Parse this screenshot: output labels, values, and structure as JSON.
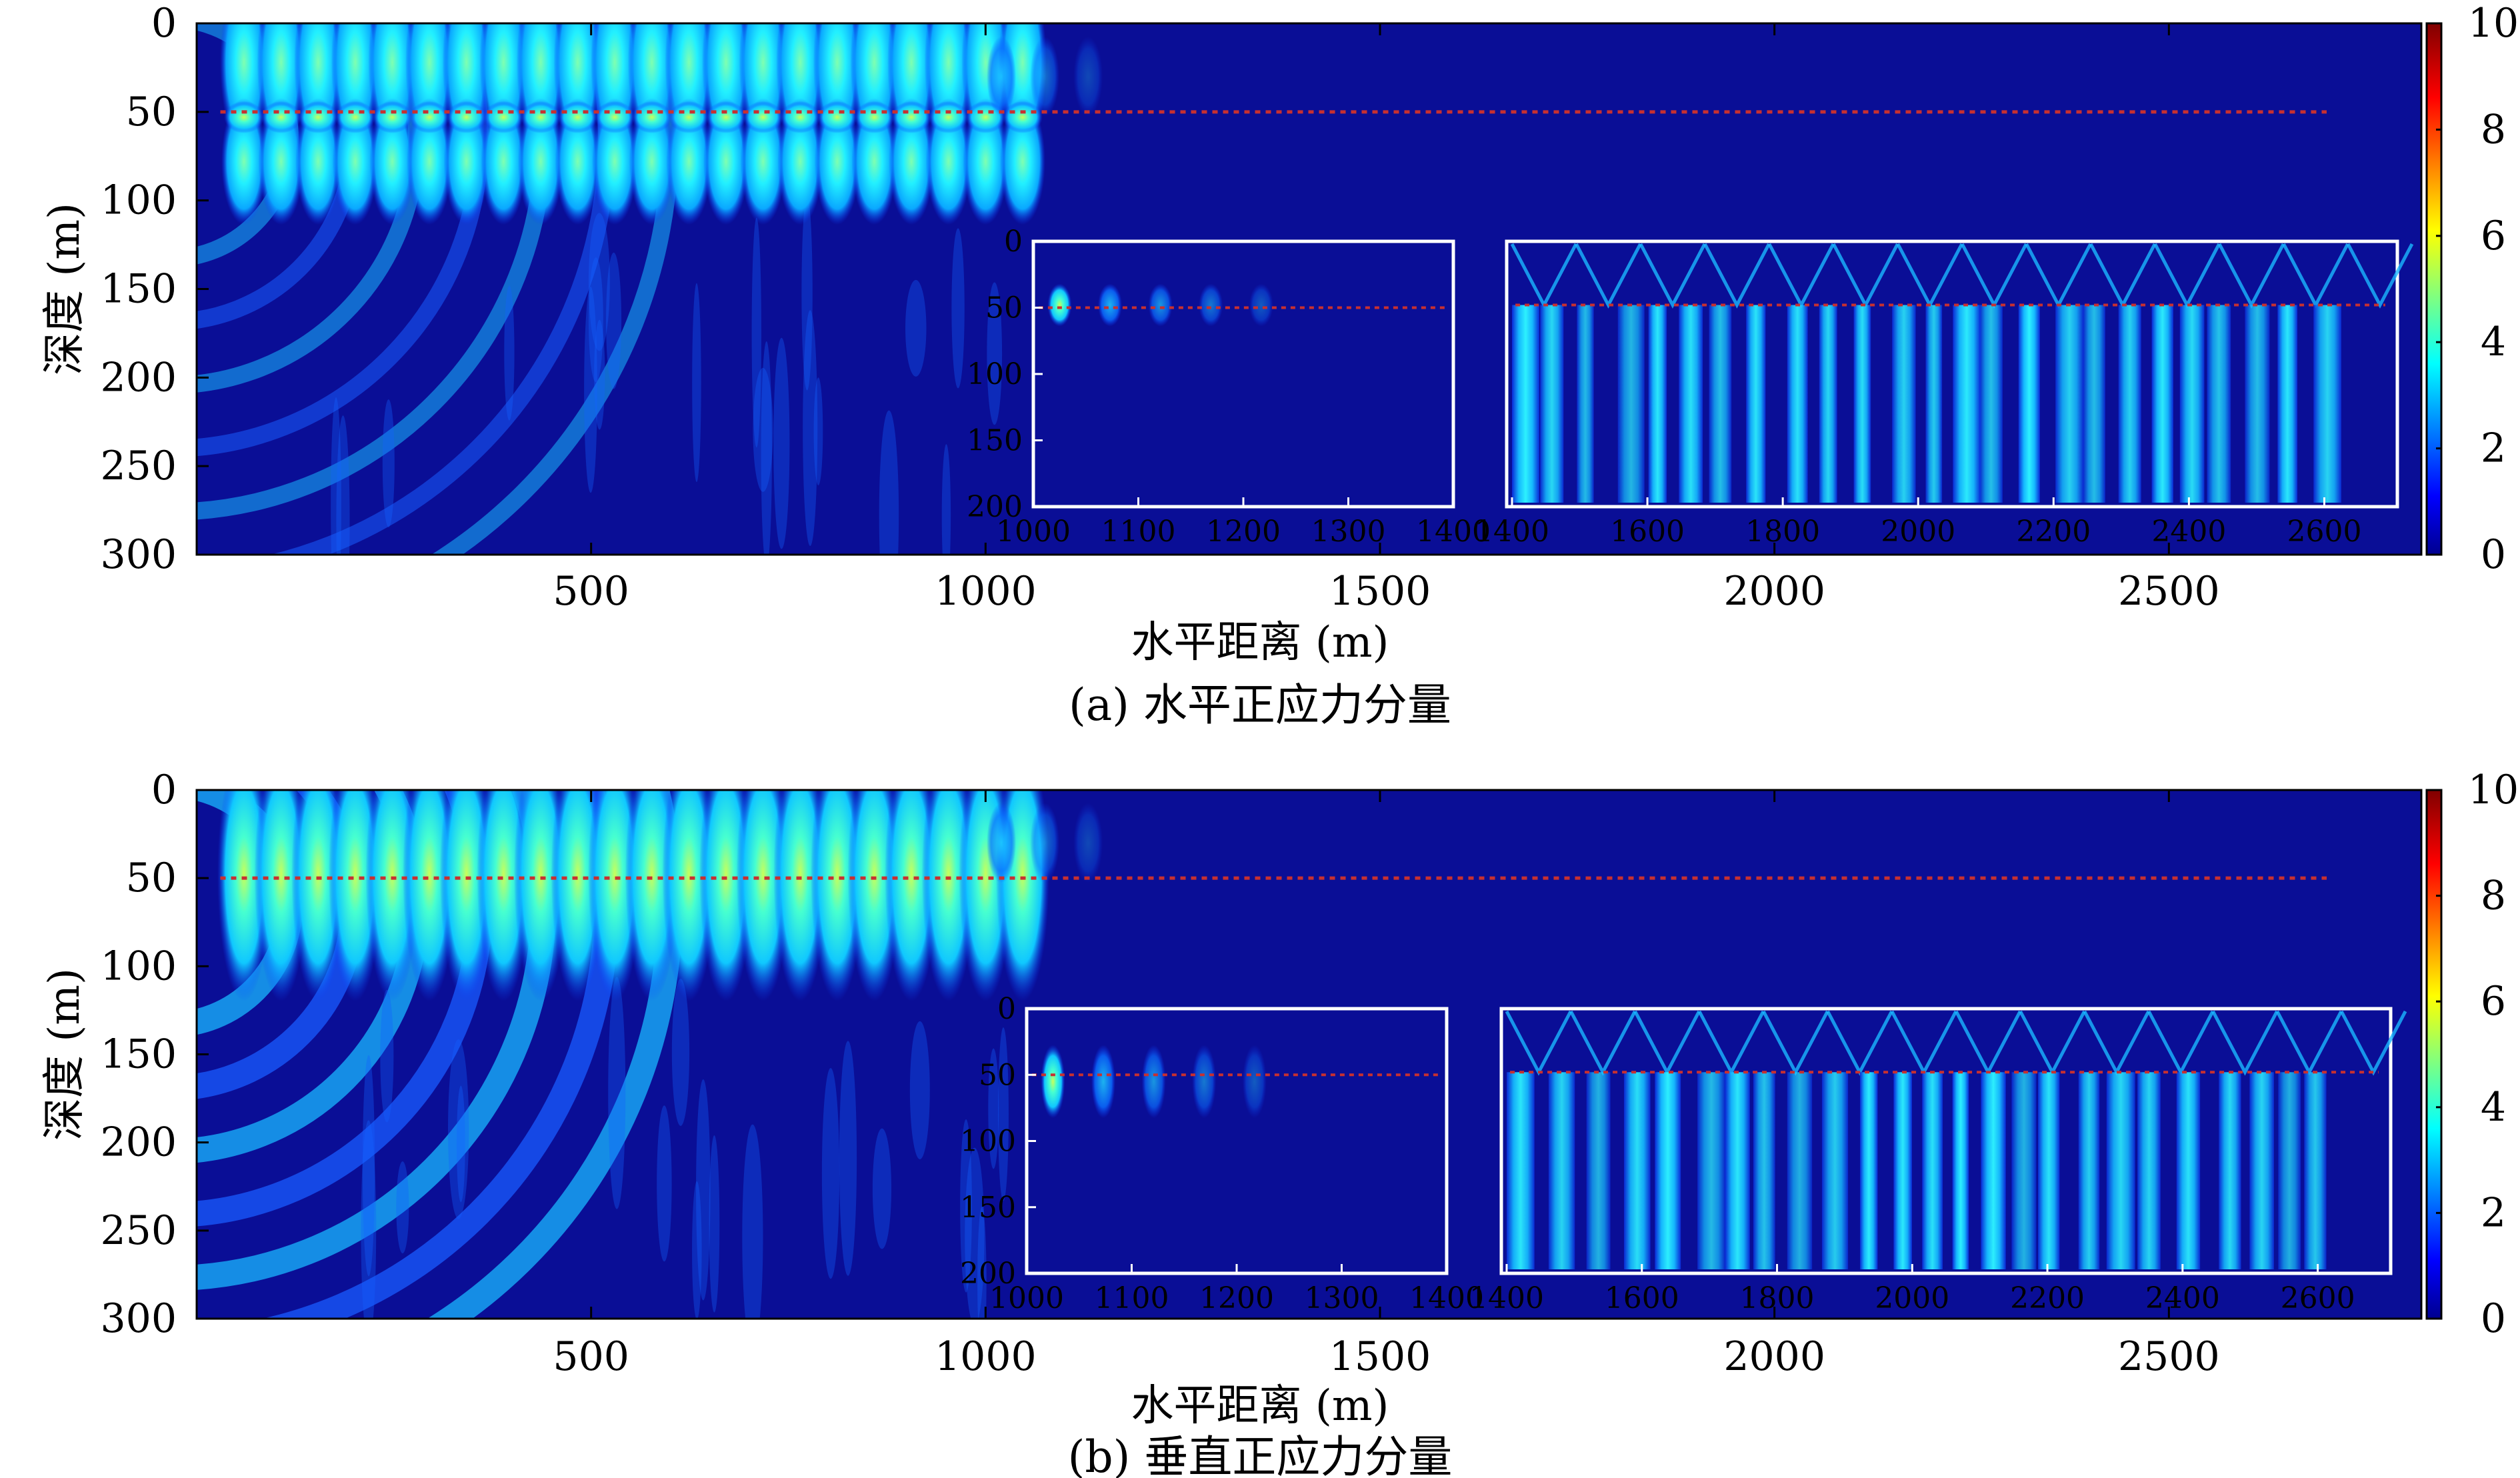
{
  "chart_data": [
    {
      "type": "heatmap",
      "caption": "(a) 水平正应力分量",
      "xlabel": "水平距离 (m)",
      "ylabel": "深度 (m)",
      "xlim": [
        0,
        2820
      ],
      "ylim": [
        300,
        0
      ],
      "xticks": [
        500,
        1000,
        1500,
        2000,
        2500
      ],
      "yticks": [
        0,
        50,
        100,
        150,
        200,
        250,
        300
      ],
      "colorbar": {
        "range": [
          0,
          10
        ],
        "ticks": [
          0,
          2,
          4,
          6,
          8,
          10
        ],
        "colormap": "jet"
      },
      "reference_line_depth": 50,
      "insets": [
        {
          "xlim": [
            1000,
            1400
          ],
          "xticks": [
            1000,
            1100,
            1200,
            1300,
            1400
          ],
          "ylim": [
            200,
            0
          ],
          "yticks": [
            0,
            50,
            100,
            150,
            200
          ]
        },
        {
          "xlim": [
            1400,
            2700
          ],
          "xticks": [
            1400,
            1600,
            1800,
            2000,
            2200,
            2400,
            2600
          ]
        }
      ]
    },
    {
      "type": "heatmap",
      "caption": "(b) 垂直正应力分量",
      "xlabel": "水平距离 (m)",
      "ylabel": "深度 (m)",
      "xlim": [
        0,
        2820
      ],
      "ylim": [
        300,
        0
      ],
      "xticks": [
        500,
        1000,
        1500,
        2000,
        2500
      ],
      "yticks": [
        0,
        50,
        100,
        150,
        200,
        250,
        300
      ],
      "colorbar": {
        "range": [
          0,
          10
        ],
        "ticks": [
          0,
          2,
          4,
          6,
          8,
          10
        ],
        "colormap": "jet"
      },
      "reference_line_depth": 50,
      "insets": [
        {
          "xlim": [
            1000,
            1400
          ],
          "xticks": [
            1000,
            1100,
            1200,
            1300,
            1400
          ],
          "ylim": [
            200,
            0
          ],
          "yticks": [
            0,
            50,
            100,
            150,
            200
          ]
        },
        {
          "xlim": [
            1400,
            2700
          ],
          "xticks": [
            1400,
            1600,
            1800,
            2000,
            2200,
            2400,
            2600
          ]
        }
      ]
    }
  ]
}
